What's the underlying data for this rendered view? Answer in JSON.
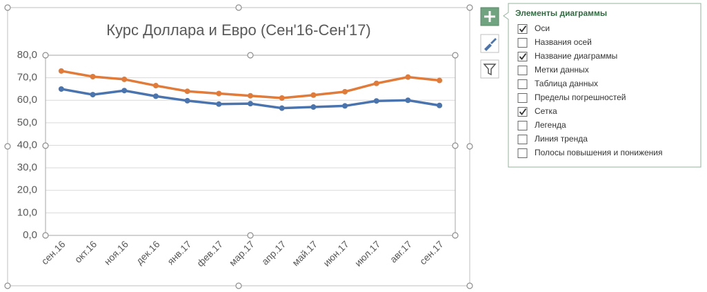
{
  "chart_data": {
    "type": "line",
    "title": "Курс Доллара и Евро (Сен'16-Сен'17)",
    "categories": [
      "сен.16",
      "окт.16",
      "ноя.16",
      "дек.16",
      "янв.17",
      "фев.17",
      "мар.17",
      "апр.17",
      "май.17",
      "июн.17",
      "июл.17",
      "авг.17",
      "сен.17"
    ],
    "series": [
      {
        "color": "#4a74ae",
        "values": [
          65,
          62.5,
          64.3,
          61.8,
          59.8,
          58.3,
          58.5,
          56.5,
          57,
          57.5,
          59.7,
          60,
          57.7
        ]
      },
      {
        "color": "#e07b39",
        "values": [
          73,
          70.5,
          69.3,
          66.5,
          64,
          63,
          62,
          61,
          62.3,
          63.8,
          67.5,
          70.3,
          68.8
        ]
      }
    ],
    "ylim": [
      0,
      80
    ],
    "yticks": [
      {
        "value": 0,
        "label": "0,0"
      },
      {
        "value": 10,
        "label": "10,0"
      },
      {
        "value": 20,
        "label": "20,0"
      },
      {
        "value": 30,
        "label": "30,0"
      },
      {
        "value": 40,
        "label": "40,0"
      },
      {
        "value": 50,
        "label": "50,0"
      },
      {
        "value": 60,
        "label": "60,0"
      },
      {
        "value": 70,
        "label": "70,0"
      },
      {
        "value": 80,
        "label": "80,0"
      }
    ],
    "grid": true
  },
  "panel": {
    "title": "Элементы диаграммы",
    "items": [
      {
        "label": "Оси",
        "checked": true
      },
      {
        "label": "Названия осей",
        "checked": false
      },
      {
        "label": "Название диаграммы",
        "checked": true
      },
      {
        "label": "Метки данных",
        "checked": false
      },
      {
        "label": "Таблица данных",
        "checked": false
      },
      {
        "label": "Пределы погрешностей",
        "checked": false
      },
      {
        "label": "Сетка",
        "checked": true
      },
      {
        "label": "Легенда",
        "checked": false
      },
      {
        "label": "Линия тренда",
        "checked": false
      },
      {
        "label": "Полосы повышения и понижения",
        "checked": false
      }
    ]
  }
}
